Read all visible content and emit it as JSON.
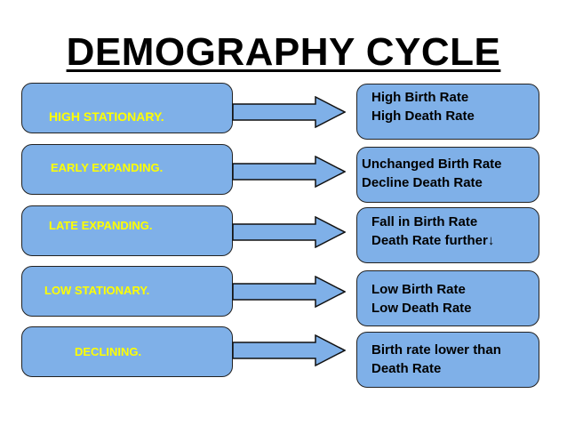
{
  "title": "DEMOGRAPHY CYCLE",
  "colors": {
    "box_fill": "#7fb0e8",
    "stage_text": "#ffff00",
    "border": "#222222"
  },
  "stages": [
    {
      "label": "HIGH STATIONARY.",
      "line1": "High Birth Rate",
      "line2": "High Death Rate"
    },
    {
      "label": "EARLY EXPANDING.",
      "line1": "Unchanged Birth Rate",
      "line2": "Decline Death Rate"
    },
    {
      "label": "LATE EXPANDING.",
      "line1": "Fall in Birth Rate",
      "line2": "Death Rate further↓"
    },
    {
      "label": "LOW STATIONARY.",
      "line1": "Low Birth Rate",
      "line2": "Low Death Rate"
    },
    {
      "label": "DECLINING.",
      "line1": "Birth rate lower than",
      "line2": "Death Rate"
    }
  ]
}
